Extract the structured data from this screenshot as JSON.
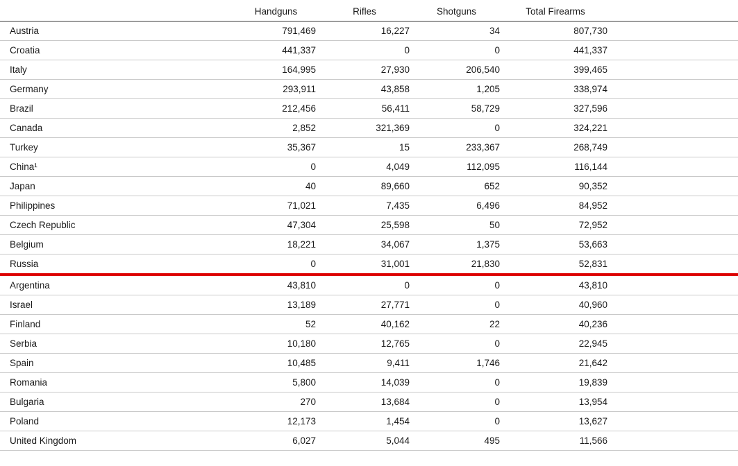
{
  "table": {
    "columns": [
      "",
      "Handguns",
      "Rifles",
      "Shotguns",
      "Total Firearms"
    ],
    "divider_after": "Russia",
    "divider_color": "#dd0000",
    "rows": [
      {
        "country": "Austria",
        "handguns": "791,469",
        "rifles": "16,227",
        "shotguns": "34",
        "total": "807,730"
      },
      {
        "country": "Croatia",
        "handguns": "441,337",
        "rifles": "0",
        "shotguns": "0",
        "total": "441,337"
      },
      {
        "country": "Italy",
        "handguns": "164,995",
        "rifles": "27,930",
        "shotguns": "206,540",
        "total": "399,465"
      },
      {
        "country": "Germany",
        "handguns": "293,911",
        "rifles": "43,858",
        "shotguns": "1,205",
        "total": "338,974"
      },
      {
        "country": "Brazil",
        "handguns": "212,456",
        "rifles": "56,411",
        "shotguns": "58,729",
        "total": "327,596"
      },
      {
        "country": "Canada",
        "handguns": "2,852",
        "rifles": "321,369",
        "shotguns": "0",
        "total": "324,221"
      },
      {
        "country": "Turkey",
        "handguns": "35,367",
        "rifles": "15",
        "shotguns": "233,367",
        "total": "268,749"
      },
      {
        "country": "China¹",
        "handguns": "0",
        "rifles": "4,049",
        "shotguns": "112,095",
        "total": "116,144"
      },
      {
        "country": "Japan",
        "handguns": "40",
        "rifles": "89,660",
        "shotguns": "652",
        "total": "90,352"
      },
      {
        "country": "Philippines",
        "handguns": "71,021",
        "rifles": "7,435",
        "shotguns": "6,496",
        "total": "84,952"
      },
      {
        "country": "Czech Republic",
        "handguns": "47,304",
        "rifles": "25,598",
        "shotguns": "50",
        "total": "72,952"
      },
      {
        "country": "Belgium",
        "handguns": "18,221",
        "rifles": "34,067",
        "shotguns": "1,375",
        "total": "53,663"
      },
      {
        "country": "Russia",
        "handguns": "0",
        "rifles": "31,001",
        "shotguns": "21,830",
        "total": "52,831"
      },
      {
        "country": "Argentina",
        "handguns": "43,810",
        "rifles": "0",
        "shotguns": "0",
        "total": "43,810"
      },
      {
        "country": "Israel",
        "handguns": "13,189",
        "rifles": "27,771",
        "shotguns": "0",
        "total": "40,960"
      },
      {
        "country": "Finland",
        "handguns": "52",
        "rifles": "40,162",
        "shotguns": "22",
        "total": "40,236"
      },
      {
        "country": "Serbia",
        "handguns": "10,180",
        "rifles": "12,765",
        "shotguns": "0",
        "total": "22,945"
      },
      {
        "country": "Spain",
        "handguns": "10,485",
        "rifles": "9,411",
        "shotguns": "1,746",
        "total": "21,642"
      },
      {
        "country": "Romania",
        "handguns": "5,800",
        "rifles": "14,039",
        "shotguns": "0",
        "total": "19,839"
      },
      {
        "country": "Bulgaria",
        "handguns": "270",
        "rifles": "13,684",
        "shotguns": "0",
        "total": "13,954"
      },
      {
        "country": "Poland",
        "handguns": "12,173",
        "rifles": "1,454",
        "shotguns": "0",
        "total": "13,627"
      },
      {
        "country": "United Kingdom",
        "handguns": "6,027",
        "rifles": "5,044",
        "shotguns": "495",
        "total": "11,566"
      }
    ]
  },
  "chart_data": {
    "type": "table",
    "columns": [
      "Country",
      "Handguns",
      "Rifles",
      "Shotguns",
      "Total Firearms"
    ],
    "rows": [
      [
        "Austria",
        791469,
        16227,
        34,
        807730
      ],
      [
        "Croatia",
        441337,
        0,
        0,
        441337
      ],
      [
        "Italy",
        164995,
        27930,
        206540,
        399465
      ],
      [
        "Germany",
        293911,
        43858,
        1205,
        338974
      ],
      [
        "Brazil",
        212456,
        56411,
        58729,
        327596
      ],
      [
        "Canada",
        2852,
        321369,
        0,
        324221
      ],
      [
        "Turkey",
        35367,
        15,
        233367,
        268749
      ],
      [
        "China¹",
        0,
        4049,
        112095,
        116144
      ],
      [
        "Japan",
        40,
        89660,
        652,
        90352
      ],
      [
        "Philippines",
        71021,
        7435,
        6496,
        84952
      ],
      [
        "Czech Republic",
        47304,
        25598,
        50,
        72952
      ],
      [
        "Belgium",
        18221,
        34067,
        1375,
        53663
      ],
      [
        "Russia",
        0,
        31001,
        21830,
        52831
      ],
      [
        "Argentina",
        43810,
        0,
        0,
        43810
      ],
      [
        "Israel",
        13189,
        27771,
        0,
        40960
      ],
      [
        "Finland",
        52,
        40162,
        22,
        40236
      ],
      [
        "Serbia",
        10180,
        12765,
        0,
        22945
      ],
      [
        "Spain",
        10485,
        9411,
        1746,
        21642
      ],
      [
        "Romania",
        5800,
        14039,
        0,
        19839
      ],
      [
        "Bulgaria",
        270,
        13684,
        0,
        13954
      ],
      [
        "Poland",
        12173,
        1454,
        0,
        13627
      ],
      [
        "United Kingdom",
        6027,
        5044,
        495,
        11566
      ]
    ],
    "annotations": [
      {
        "type": "horizontal-divider-line",
        "color": "#dd0000",
        "position": "below row Russia"
      }
    ],
    "title": "",
    "sorted_by": "Total Firearms descending"
  }
}
